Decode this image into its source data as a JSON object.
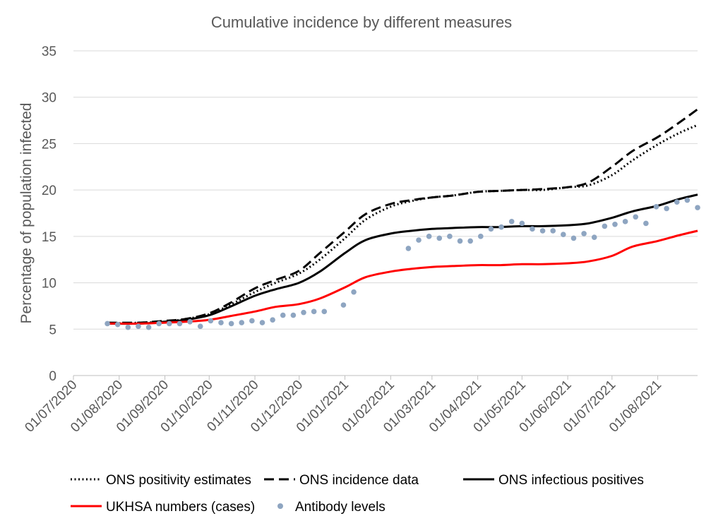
{
  "chart_data": {
    "type": "line",
    "title": "Cumulative incidence by different measures",
    "ylabel": "Percentage of population infected",
    "xlabel": "",
    "ylim": [
      0,
      35
    ],
    "yticks": [
      "0",
      "5",
      "10",
      "15",
      "20",
      "25",
      "30",
      "35"
    ],
    "xticks": [
      "01/07/2020",
      "01/08/2020",
      "01/09/2020",
      "01/10/2020",
      "01/11/2020",
      "01/12/2020",
      "01/01/2021",
      "01/02/2021",
      "01/03/2021",
      "01/04/2021",
      "01/05/2021",
      "01/06/2021",
      "01/07/2021",
      "01/08/2021"
    ],
    "x_range": [
      "2020-07-01",
      "2021-08-28"
    ],
    "grid": "horizontal",
    "legend_position": "bottom",
    "series": [
      {
        "name": "ONS positivity estimates",
        "style": "dotted",
        "color": "#000000",
        "points": [
          [
            "2020-07-24",
            5.6
          ],
          [
            "2020-08-15",
            5.7
          ],
          [
            "2020-09-01",
            5.8
          ],
          [
            "2020-09-15",
            6.1
          ],
          [
            "2020-10-01",
            6.6
          ],
          [
            "2020-10-15",
            7.6
          ],
          [
            "2020-11-01",
            9.0
          ],
          [
            "2020-11-15",
            10.0
          ],
          [
            "2020-12-01",
            11.0
          ],
          [
            "2020-12-15",
            12.5
          ],
          [
            "2021-01-01",
            14.8
          ],
          [
            "2021-01-15",
            16.8
          ],
          [
            "2021-02-01",
            18.2
          ],
          [
            "2021-02-15",
            18.8
          ],
          [
            "2021-03-01",
            19.2
          ],
          [
            "2021-03-15",
            19.4
          ],
          [
            "2021-04-01",
            19.8
          ],
          [
            "2021-04-15",
            19.9
          ],
          [
            "2021-05-01",
            20.0
          ],
          [
            "2021-05-15",
            20.0
          ],
          [
            "2021-06-01",
            20.3
          ],
          [
            "2021-06-15",
            20.5
          ],
          [
            "2021-07-01",
            21.6
          ],
          [
            "2021-07-15",
            23.2
          ],
          [
            "2021-08-01",
            24.9
          ],
          [
            "2021-08-15",
            26.1
          ],
          [
            "2021-08-28",
            27.0
          ]
        ]
      },
      {
        "name": "ONS incidence data",
        "style": "dashed",
        "color": "#000000",
        "points": [
          [
            "2020-07-24",
            5.7
          ],
          [
            "2020-08-15",
            5.7
          ],
          [
            "2020-09-01",
            5.9
          ],
          [
            "2020-09-15",
            6.1
          ],
          [
            "2020-10-01",
            6.7
          ],
          [
            "2020-10-15",
            7.8
          ],
          [
            "2020-11-01",
            9.4
          ],
          [
            "2020-11-15",
            10.3
          ],
          [
            "2020-12-01",
            11.3
          ],
          [
            "2020-12-15",
            13.2
          ],
          [
            "2021-01-01",
            15.5
          ],
          [
            "2021-01-15",
            17.4
          ],
          [
            "2021-02-01",
            18.5
          ],
          [
            "2021-02-15",
            18.9
          ],
          [
            "2021-03-01",
            19.2
          ],
          [
            "2021-03-15",
            19.4
          ],
          [
            "2021-04-01",
            19.8
          ],
          [
            "2021-04-15",
            19.9
          ],
          [
            "2021-05-01",
            20.0
          ],
          [
            "2021-05-15",
            20.1
          ],
          [
            "2021-06-01",
            20.3
          ],
          [
            "2021-06-15",
            20.8
          ],
          [
            "2021-07-01",
            22.5
          ],
          [
            "2021-07-15",
            24.2
          ],
          [
            "2021-08-01",
            25.7
          ],
          [
            "2021-08-15",
            27.2
          ],
          [
            "2021-08-28",
            28.7
          ]
        ]
      },
      {
        "name": "ONS infectious positives",
        "style": "solid",
        "color": "#000000",
        "points": [
          [
            "2020-07-24",
            5.6
          ],
          [
            "2020-08-15",
            5.6
          ],
          [
            "2020-09-01",
            5.8
          ],
          [
            "2020-09-15",
            6.0
          ],
          [
            "2020-10-01",
            6.5
          ],
          [
            "2020-10-15",
            7.4
          ],
          [
            "2020-11-01",
            8.6
          ],
          [
            "2020-11-15",
            9.3
          ],
          [
            "2020-12-01",
            10.0
          ],
          [
            "2020-12-15",
            11.2
          ],
          [
            "2021-01-01",
            13.2
          ],
          [
            "2021-01-15",
            14.6
          ],
          [
            "2021-02-01",
            15.3
          ],
          [
            "2021-02-15",
            15.6
          ],
          [
            "2021-03-01",
            15.8
          ],
          [
            "2021-03-15",
            15.9
          ],
          [
            "2021-04-01",
            16.0
          ],
          [
            "2021-04-15",
            16.0
          ],
          [
            "2021-05-01",
            16.1
          ],
          [
            "2021-05-15",
            16.1
          ],
          [
            "2021-06-01",
            16.2
          ],
          [
            "2021-06-15",
            16.4
          ],
          [
            "2021-07-01",
            17.0
          ],
          [
            "2021-07-15",
            17.7
          ],
          [
            "2021-08-01",
            18.3
          ],
          [
            "2021-08-15",
            19.0
          ],
          [
            "2021-08-28",
            19.5
          ]
        ]
      },
      {
        "name": "UKHSA numbers (cases)",
        "style": "solid",
        "color": "#ff0000",
        "points": [
          [
            "2020-07-24",
            5.6
          ],
          [
            "2020-08-15",
            5.6
          ],
          [
            "2020-09-01",
            5.7
          ],
          [
            "2020-09-15",
            5.8
          ],
          [
            "2020-10-01",
            6.0
          ],
          [
            "2020-10-15",
            6.4
          ],
          [
            "2020-11-01",
            6.9
          ],
          [
            "2020-11-15",
            7.4
          ],
          [
            "2020-12-01",
            7.7
          ],
          [
            "2020-12-15",
            8.3
          ],
          [
            "2021-01-01",
            9.5
          ],
          [
            "2021-01-15",
            10.6
          ],
          [
            "2021-02-01",
            11.2
          ],
          [
            "2021-02-15",
            11.5
          ],
          [
            "2021-03-01",
            11.7
          ],
          [
            "2021-03-15",
            11.8
          ],
          [
            "2021-04-01",
            11.9
          ],
          [
            "2021-04-15",
            11.9
          ],
          [
            "2021-05-01",
            12.0
          ],
          [
            "2021-05-15",
            12.0
          ],
          [
            "2021-06-01",
            12.1
          ],
          [
            "2021-06-15",
            12.3
          ],
          [
            "2021-07-01",
            12.9
          ],
          [
            "2021-07-15",
            13.9
          ],
          [
            "2021-08-01",
            14.5
          ],
          [
            "2021-08-15",
            15.1
          ],
          [
            "2021-08-28",
            15.6
          ]
        ]
      }
    ],
    "scatter": {
      "name": "Antibody levels",
      "color": "#8ea5c1",
      "points": [
        [
          "2020-07-24",
          5.6
        ],
        [
          "2020-07-31",
          5.5
        ],
        [
          "2020-08-07",
          5.2
        ],
        [
          "2020-08-14",
          5.3
        ],
        [
          "2020-08-21",
          5.2
        ],
        [
          "2020-08-28",
          5.6
        ],
        [
          "2020-09-04",
          5.6
        ],
        [
          "2020-09-11",
          5.6
        ],
        [
          "2020-09-18",
          5.8
        ],
        [
          "2020-09-25",
          5.3
        ],
        [
          "2020-10-02",
          5.9
        ],
        [
          "2020-10-09",
          5.7
        ],
        [
          "2020-10-16",
          5.6
        ],
        [
          "2020-10-23",
          5.7
        ],
        [
          "2020-10-30",
          5.9
        ],
        [
          "2020-11-06",
          5.7
        ],
        [
          "2020-11-13",
          6.0
        ],
        [
          "2020-11-20",
          6.5
        ],
        [
          "2020-11-27",
          6.5
        ],
        [
          "2020-12-04",
          6.8
        ],
        [
          "2020-12-11",
          6.9
        ],
        [
          "2020-12-18",
          6.9
        ],
        [
          "2020-12-31",
          7.6
        ],
        [
          "2021-01-07",
          9.0
        ],
        [
          "2021-02-13",
          13.7
        ],
        [
          "2021-02-20",
          14.6
        ],
        [
          "2021-02-27",
          15.0
        ],
        [
          "2021-03-06",
          14.8
        ],
        [
          "2021-03-13",
          15.0
        ],
        [
          "2021-03-20",
          14.5
        ],
        [
          "2021-03-27",
          14.5
        ],
        [
          "2021-04-03",
          15.0
        ],
        [
          "2021-04-10",
          15.8
        ],
        [
          "2021-04-17",
          16.0
        ],
        [
          "2021-04-24",
          16.6
        ],
        [
          "2021-05-01",
          16.4
        ],
        [
          "2021-05-08",
          15.8
        ],
        [
          "2021-05-15",
          15.6
        ],
        [
          "2021-05-22",
          15.6
        ],
        [
          "2021-05-29",
          15.2
        ],
        [
          "2021-06-05",
          14.8
        ],
        [
          "2021-06-12",
          15.3
        ],
        [
          "2021-06-19",
          14.9
        ],
        [
          "2021-06-26",
          16.1
        ],
        [
          "2021-07-03",
          16.3
        ],
        [
          "2021-07-10",
          16.6
        ],
        [
          "2021-07-17",
          17.1
        ],
        [
          "2021-07-24",
          16.4
        ],
        [
          "2021-07-31",
          18.2
        ],
        [
          "2021-08-07",
          18.0
        ],
        [
          "2021-08-14",
          18.7
        ],
        [
          "2021-08-21",
          18.9
        ],
        [
          "2021-08-28",
          18.1
        ]
      ]
    }
  }
}
